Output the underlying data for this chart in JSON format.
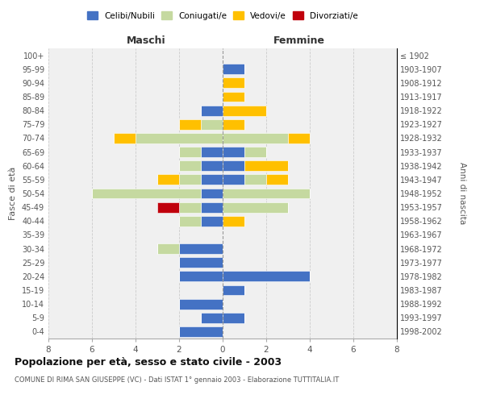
{
  "age_groups": [
    "0-4",
    "5-9",
    "10-14",
    "15-19",
    "20-24",
    "25-29",
    "30-34",
    "35-39",
    "40-44",
    "45-49",
    "50-54",
    "55-59",
    "60-64",
    "65-69",
    "70-74",
    "75-79",
    "80-84",
    "85-89",
    "90-94",
    "95-99",
    "100+"
  ],
  "birth_years": [
    "1998-2002",
    "1993-1997",
    "1988-1992",
    "1983-1987",
    "1978-1982",
    "1973-1977",
    "1968-1972",
    "1963-1967",
    "1958-1962",
    "1953-1957",
    "1948-1952",
    "1943-1947",
    "1938-1942",
    "1933-1937",
    "1928-1932",
    "1923-1927",
    "1918-1922",
    "1913-1917",
    "1908-1912",
    "1903-1907",
    "≤ 1902"
  ],
  "male_celibi": [
    2,
    1,
    2,
    0,
    2,
    2,
    2,
    0,
    1,
    1,
    1,
    1,
    1,
    1,
    0,
    0,
    1,
    0,
    0,
    0,
    0
  ],
  "male_coniugati": [
    0,
    0,
    0,
    0,
    0,
    0,
    1,
    0,
    1,
    1,
    5,
    1,
    1,
    1,
    4,
    1,
    0,
    0,
    0,
    0,
    0
  ],
  "male_vedovi": [
    0,
    0,
    0,
    0,
    0,
    0,
    0,
    0,
    0,
    0,
    0,
    1,
    0,
    0,
    1,
    1,
    0,
    0,
    0,
    0,
    0
  ],
  "male_divorziati": [
    0,
    0,
    0,
    0,
    0,
    0,
    0,
    0,
    0,
    1,
    0,
    0,
    0,
    0,
    0,
    0,
    0,
    0,
    0,
    0,
    0
  ],
  "female_celibi": [
    0,
    1,
    0,
    1,
    4,
    0,
    0,
    0,
    0,
    0,
    0,
    1,
    1,
    1,
    0,
    0,
    0,
    0,
    0,
    1,
    0
  ],
  "female_coniugati": [
    0,
    0,
    0,
    0,
    0,
    0,
    0,
    0,
    0,
    3,
    4,
    1,
    0,
    1,
    3,
    0,
    0,
    0,
    0,
    0,
    0
  ],
  "female_vedovi": [
    0,
    0,
    0,
    0,
    0,
    0,
    0,
    0,
    1,
    0,
    0,
    1,
    2,
    0,
    1,
    1,
    2,
    1,
    1,
    0,
    0
  ],
  "female_divorziati": [
    0,
    0,
    0,
    0,
    0,
    0,
    0,
    0,
    0,
    0,
    0,
    0,
    0,
    0,
    0,
    0,
    0,
    0,
    0,
    0,
    0
  ],
  "color_celibi": "#4472c4",
  "color_coniugati": "#c5d9a0",
  "color_vedovi": "#ffc000",
  "color_divorziati": "#c0000c",
  "xlim": 8,
  "title": "Popolazione per età, sesso e stato civile - 2003",
  "subtitle": "COMUNE DI RIMA SAN GIUSEPPE (VC) - Dati ISTAT 1° gennaio 2003 - Elaborazione TUTTITALIA.IT",
  "ylabel_left": "Fasce di età",
  "ylabel_right": "Anni di nascita",
  "xlabel_maschi": "Maschi",
  "xlabel_femmine": "Femmine",
  "legend_celibi": "Celibi/Nubili",
  "legend_coniugati": "Coniugati/e",
  "legend_vedovi": "Vedovi/e",
  "legend_divorziati": "Divorziati/e",
  "bg_color": "#f0f0f0",
  "grid_color": "#cccccc"
}
